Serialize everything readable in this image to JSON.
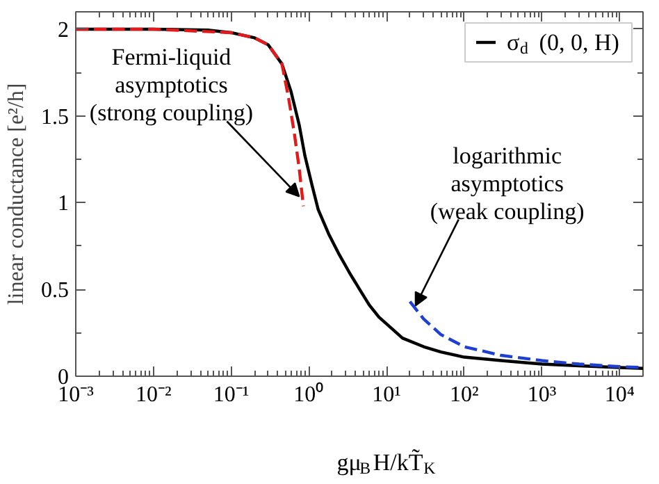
{
  "chart_data": {
    "type": "line",
    "xlabel": "gμ$_{B}$H/kT̃$_{K}$",
    "ylabel": "linear conductance [e²/h]",
    "log": "x",
    "xlim": [
      0.001,
      20000
    ],
    "ylim": [
      0,
      2.1
    ],
    "xticks": [
      {
        "value": 0.001,
        "label": "10⁻³"
      },
      {
        "value": 0.01,
        "label": "10⁻²"
      },
      {
        "value": 0.1,
        "label": "10⁻¹"
      },
      {
        "value": 1,
        "label": "10⁰"
      },
      {
        "value": 10,
        "label": "10¹"
      },
      {
        "value": 100,
        "label": "10²"
      },
      {
        "value": 1000,
        "label": "10³"
      },
      {
        "value": 10000,
        "label": "10⁴"
      }
    ],
    "yticks": [
      0,
      0.5,
      1,
      1.5,
      2
    ],
    "grid": false,
    "legend": "top right",
    "series": [
      {
        "name": "σ$_{d}$ (0, 0, H)",
        "color": "#000000",
        "line_style": "solid",
        "x": [
          0.001,
          0.01,
          0.05,
          0.1,
          0.2,
          0.3,
          0.45,
          0.59,
          0.75,
          0.89,
          1.1,
          1.32,
          1.8,
          2.4,
          3.3,
          4.5,
          6,
          8,
          12,
          16,
          30,
          50,
          100,
          300,
          1000,
          3000,
          10000,
          20000
        ],
        "values": [
          2,
          2,
          1.995,
          1.98,
          1.95,
          1.91,
          1.8,
          1.64,
          1.45,
          1.27,
          1.1,
          0.96,
          0.82,
          0.71,
          0.6,
          0.5,
          0.41,
          0.34,
          0.27,
          0.22,
          0.17,
          0.14,
          0.11,
          0.09,
          0.07,
          0.06,
          0.05,
          0.045
        ]
      },
      {
        "color": "#e31a1c",
        "line_style": "dashed",
        "x": [
          0.001,
          0.01,
          0.1,
          0.2,
          0.3,
          0.45,
          0.55,
          0.65,
          0.75,
          0.85
        ],
        "values": [
          2,
          2,
          1.98,
          1.95,
          1.91,
          1.8,
          1.6,
          1.4,
          1.2,
          0.98
        ]
      },
      {
        "color": "#1f3fd0",
        "line_style": "dashed",
        "x": [
          20,
          30,
          50,
          100,
          300,
          1000,
          3000,
          10000,
          20000
        ],
        "values": [
          0.43,
          0.33,
          0.24,
          0.17,
          0.12,
          0.09,
          0.07,
          0.055,
          0.05
        ]
      }
    ],
    "annotations": [
      {
        "text": "Fermi-liquid\nasymptotics\n(strong coupling)",
        "x": 0.85,
        "y": 1.02
      },
      {
        "text": "logarithmic\nasymptotics\n(weak coupling)",
        "x": 20,
        "y": 0.39
      }
    ]
  }
}
